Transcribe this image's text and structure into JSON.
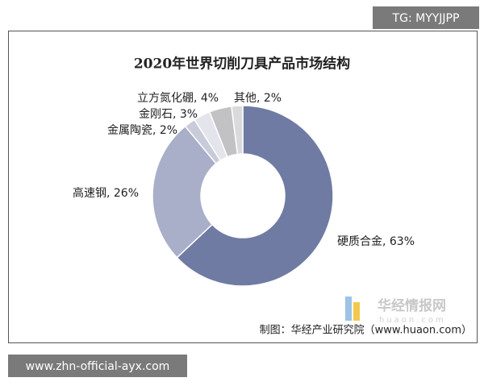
{
  "watermark": "TG: MYYJJPP",
  "footer_url": "www.zhn-official-ayx.com",
  "logo": {
    "name": "华经情报网",
    "site": "huaon.com"
  },
  "source": "制图：华经产业研究院（www.huaon.com）",
  "chart_data": {
    "type": "donut",
    "title": "2020年世界切削刀具产品市场结构",
    "categories": [
      "硬质合金",
      "高速钢",
      "金属陶瓷",
      "金刚石",
      "立方氮化硼",
      "其他"
    ],
    "values": [
      63,
      26,
      2,
      3,
      4,
      2
    ],
    "value_labels": [
      "硬质合金, 63%",
      "高速钢, 26%",
      "金属陶瓷, 2%",
      "金刚石, 3%",
      "立方氮化硼, 4%",
      "其他, 2%"
    ],
    "colors": [
      "#6f7ba2",
      "#a9aec9",
      "#c8cbd9",
      "#e4e5ec",
      "#c2c2c4",
      "#dadadc"
    ]
  }
}
